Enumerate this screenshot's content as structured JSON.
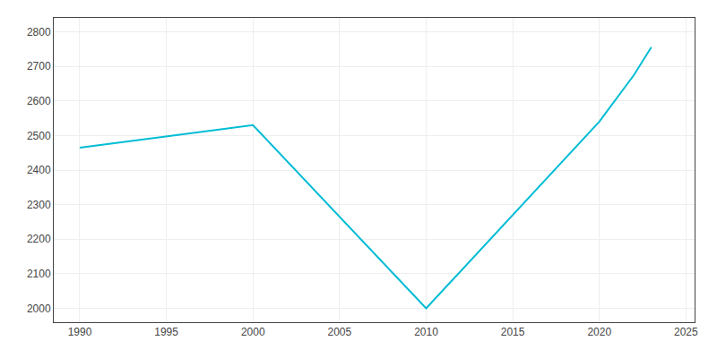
{
  "chart_data": {
    "type": "line",
    "x": [
      1990,
      2000,
      2010,
      2020,
      2022,
      2023
    ],
    "values": [
      2465,
      2530,
      2000,
      2540,
      2675,
      2755
    ],
    "color": "#00bcd4",
    "xlim": [
      1988.5,
      2025.5
    ],
    "ylim": [
      1960,
      2840
    ],
    "xticks": [
      1990,
      1995,
      2000,
      2005,
      2010,
      2015,
      2020,
      2025
    ],
    "yticks": [
      2000,
      2100,
      2200,
      2300,
      2400,
      2500,
      2600,
      2700,
      2800
    ],
    "grid": true
  }
}
